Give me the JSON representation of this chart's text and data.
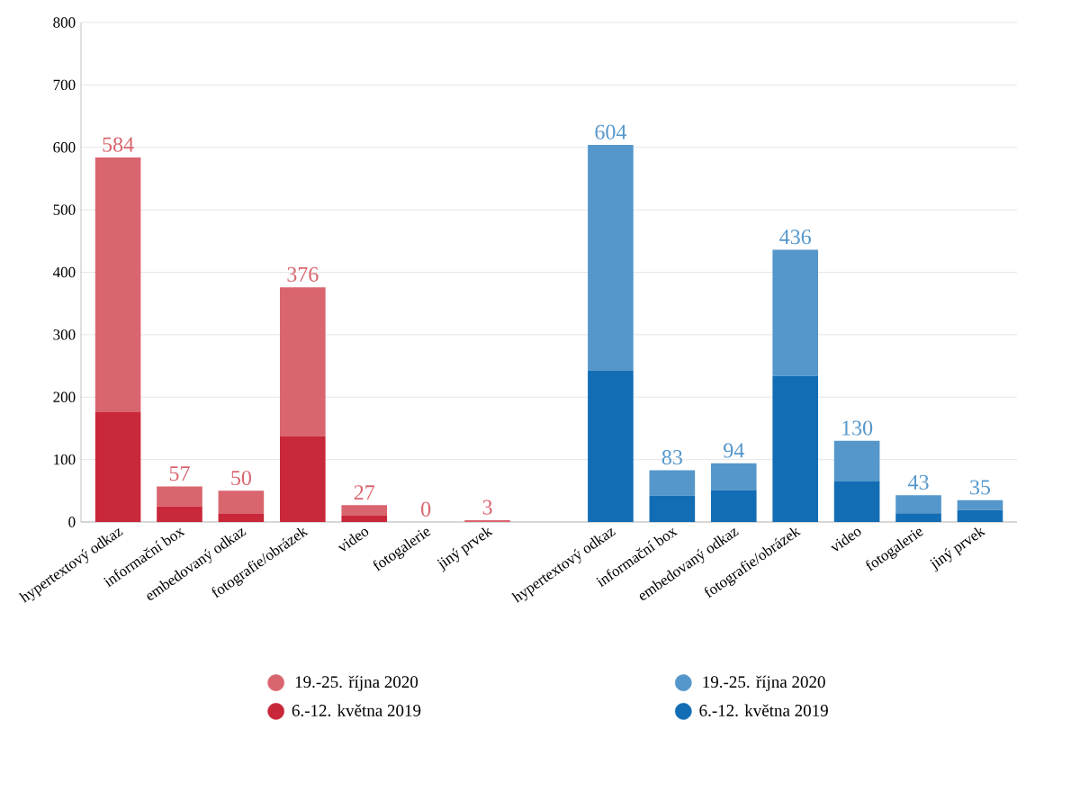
{
  "chart_data": {
    "type": "bar",
    "stacked": true,
    "categories": [
      "hypertextový odkaz",
      "informační box",
      "embedovaný odkaz",
      "fotografie/obrázek",
      "video",
      "fotogalerie",
      "jiný prvek",
      null,
      "hypertextový odkaz",
      "informační box",
      "embedovaný odkaz",
      "fotografie/obrázek",
      "video",
      "fotogalerie",
      "jiný prvek"
    ],
    "series": [
      {
        "name": "6.-12. května 2019",
        "color": "#c8283a",
        "values": [
          176,
          25,
          13,
          137,
          10,
          0,
          0,
          null,
          null,
          null,
          null,
          null,
          null,
          null,
          null
        ]
      },
      {
        "name": "19.-25. října 2020",
        "color": "#d9656f",
        "values": [
          408,
          32,
          37,
          239,
          17,
          0,
          3,
          null,
          null,
          null,
          null,
          null,
          null,
          null,
          null
        ]
      },
      {
        "name": "6.-12. května 2019",
        "color": "#136db4",
        "values": [
          null,
          null,
          null,
          null,
          null,
          null,
          null,
          null,
          243,
          42,
          51,
          234,
          65,
          14,
          19
        ]
      },
      {
        "name": "19.-25. října 2020",
        "color": "#5597cb",
        "values": [
          null,
          null,
          null,
          null,
          null,
          null,
          null,
          null,
          361,
          41,
          43,
          202,
          65,
          29,
          16
        ]
      }
    ],
    "totals": [
      "584",
      "57",
      "50",
      "376",
      "27",
      "0",
      "3",
      null,
      "604",
      "83",
      "94",
      "436",
      "130",
      "43",
      "35"
    ],
    "ylim": [
      0,
      800
    ],
    "yticks": [
      0,
      100,
      200,
      300,
      400,
      500,
      600,
      700,
      800
    ],
    "grid": "y",
    "legend": "bottom"
  }
}
